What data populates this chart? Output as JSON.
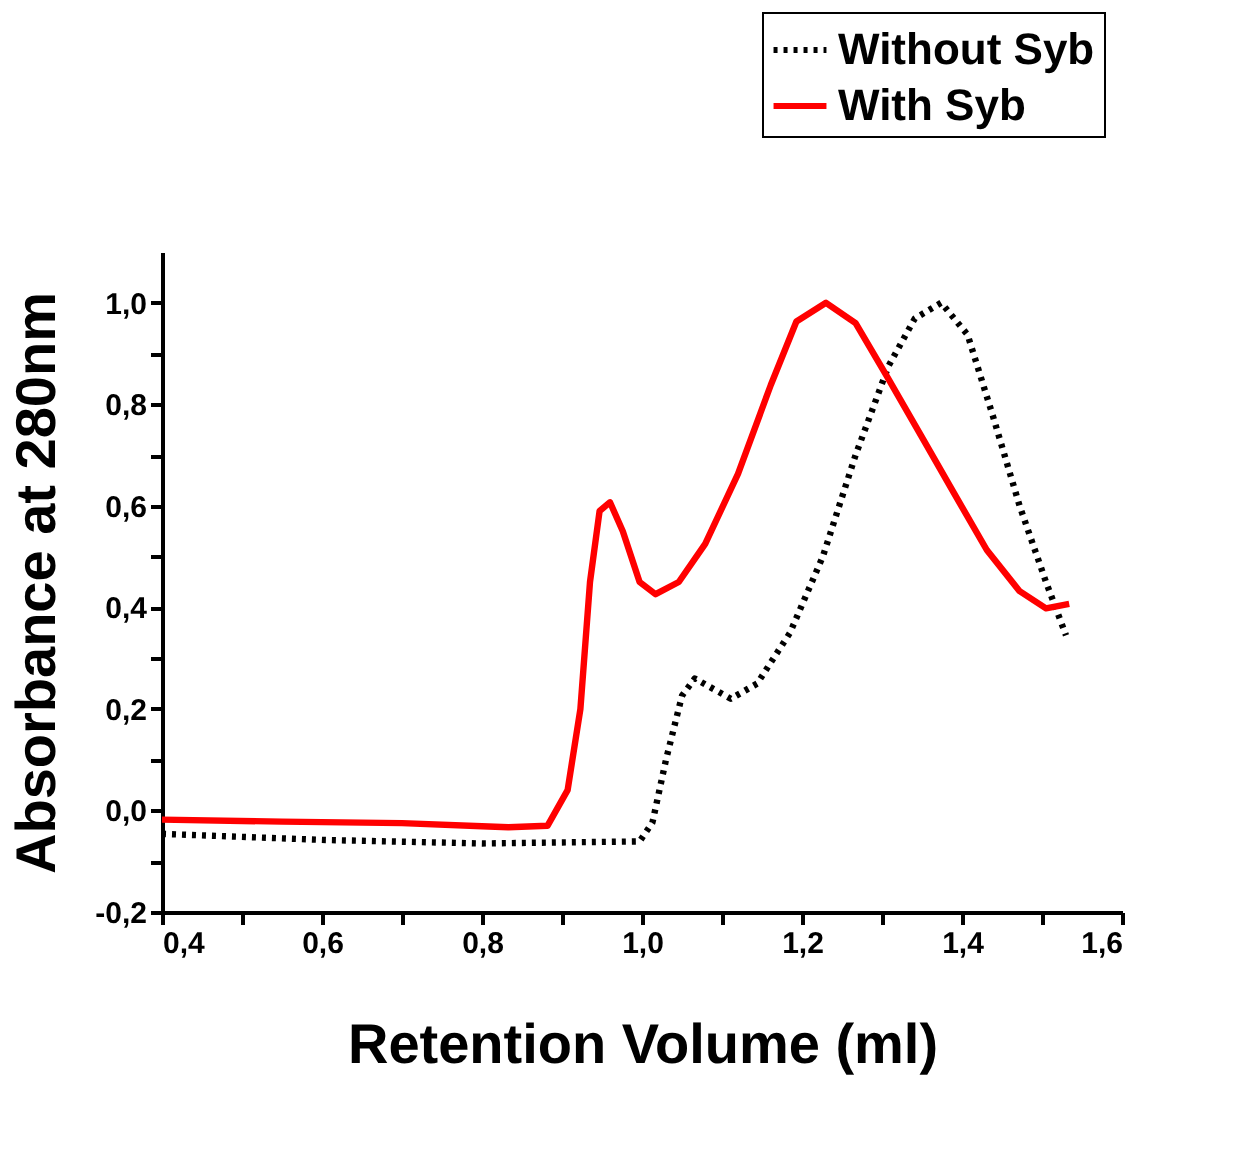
{
  "chart_data": {
    "type": "line",
    "xlabel": "Retention Volume (ml)",
    "ylabel": "Absorbance at 280nm",
    "xlim": [
      0.4,
      1.6
    ],
    "ylim": [
      -0.2,
      1.1
    ],
    "xticks": [
      {
        "value": 0.4,
        "label": "0,4"
      },
      {
        "value": 0.5,
        "label": null
      },
      {
        "value": 0.6,
        "label": "0,6"
      },
      {
        "value": 0.7,
        "label": null
      },
      {
        "value": 0.8,
        "label": "0,8"
      },
      {
        "value": 0.9,
        "label": null
      },
      {
        "value": 1.0,
        "label": "1,0"
      },
      {
        "value": 1.1,
        "label": null
      },
      {
        "value": 1.2,
        "label": "1,2"
      },
      {
        "value": 1.3,
        "label": null
      },
      {
        "value": 1.4,
        "label": "1,4"
      },
      {
        "value": 1.5,
        "label": null
      },
      {
        "value": 1.6,
        "label": "1,6"
      }
    ],
    "yticks": [
      {
        "value": -0.2,
        "label": "-0,2"
      },
      {
        "value": -0.1,
        "label": null
      },
      {
        "value": 0.0,
        "label": "0,0"
      },
      {
        "value": 0.1,
        "label": null
      },
      {
        "value": 0.2,
        "label": "0,2"
      },
      {
        "value": 0.3,
        "label": null
      },
      {
        "value": 0.4,
        "label": "0,4"
      },
      {
        "value": 0.5,
        "label": null
      },
      {
        "value": 0.6,
        "label": "0,6"
      },
      {
        "value": 0.7,
        "label": null
      },
      {
        "value": 0.8,
        "label": "0,8"
      },
      {
        "value": 0.9,
        "label": null
      },
      {
        "value": 1.0,
        "label": "1,0"
      }
    ],
    "grid": false,
    "legend": "top right",
    "marker": "none",
    "series": [
      {
        "name": "Without Syb",
        "color": "#000000",
        "line_style": "dotted",
        "x": [
          0.4,
          0.6,
          0.8,
          0.997,
          1.013,
          1.03,
          1.05,
          1.066,
          1.111,
          1.144,
          1.185,
          1.226,
          1.267,
          1.308,
          1.341,
          1.374,
          1.407,
          1.439,
          1.472,
          1.505,
          1.53
        ],
        "values": [
          -0.046,
          -0.058,
          -0.065,
          -0.061,
          -0.024,
          0.1,
          0.226,
          0.26,
          0.22,
          0.25,
          0.35,
          0.5,
          0.7,
          0.875,
          0.969,
          1.0,
          0.937,
          0.775,
          0.6,
          0.45,
          0.345
        ]
      },
      {
        "name": "With Syb",
        "color": "#ff0000",
        "line_style": "solid",
        "x": [
          0.4,
          0.55,
          0.7,
          0.8,
          0.833,
          0.882,
          0.907,
          0.923,
          0.935,
          0.947,
          0.96,
          0.976,
          0.997,
          1.017,
          1.046,
          1.079,
          1.12,
          1.161,
          1.193,
          1.23,
          1.267,
          1.308,
          1.349,
          1.39,
          1.431,
          1.472,
          1.505,
          1.534
        ],
        "values": [
          -0.018,
          -0.022,
          -0.025,
          -0.031,
          -0.033,
          -0.03,
          0.04,
          0.2,
          0.45,
          0.59,
          0.607,
          0.55,
          0.45,
          0.426,
          0.45,
          0.525,
          0.663,
          0.838,
          0.963,
          1.0,
          0.96,
          0.85,
          0.738,
          0.625,
          0.513,
          0.432,
          0.398,
          0.407
        ]
      }
    ]
  }
}
